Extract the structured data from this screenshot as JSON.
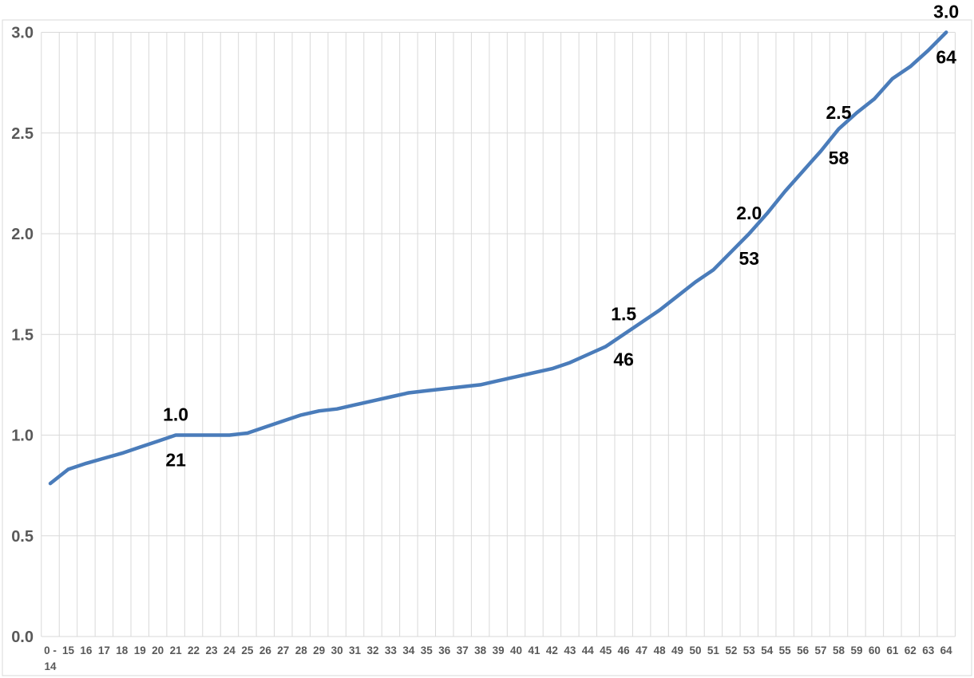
{
  "chart_data": {
    "type": "line",
    "title": "",
    "xlabel": "",
    "ylabel": "",
    "categories": [
      "0 - 14",
      "15",
      "16",
      "17",
      "18",
      "19",
      "20",
      "21",
      "22",
      "23",
      "24",
      "25",
      "26",
      "27",
      "28",
      "29",
      "30",
      "31",
      "32",
      "33",
      "34",
      "35",
      "36",
      "37",
      "38",
      "39",
      "40",
      "41",
      "42",
      "43",
      "44",
      "45",
      "46",
      "47",
      "48",
      "49",
      "50",
      "51",
      "52",
      "53",
      "54",
      "55",
      "56",
      "57",
      "58",
      "59",
      "60",
      "61",
      "62",
      "63",
      "64"
    ],
    "values": [
      0.76,
      0.83,
      0.86,
      0.885,
      0.91,
      0.94,
      0.97,
      1.0,
      1.0,
      1.0,
      1.0,
      1.01,
      1.04,
      1.07,
      1.1,
      1.12,
      1.13,
      1.15,
      1.17,
      1.19,
      1.21,
      1.22,
      1.23,
      1.24,
      1.25,
      1.27,
      1.29,
      1.31,
      1.33,
      1.36,
      1.4,
      1.44,
      1.5,
      1.56,
      1.62,
      1.69,
      1.76,
      1.82,
      1.91,
      2.0,
      2.1,
      2.21,
      2.31,
      2.41,
      2.52,
      2.6,
      2.67,
      2.77,
      2.83,
      2.91,
      3.0
    ],
    "ylim": [
      0.0,
      3.0
    ],
    "ytick_labels": [
      "0.0",
      "0.5",
      "1.0",
      "1.5",
      "2.0",
      "2.5",
      "3.0"
    ],
    "grid": true,
    "legend": "none",
    "annotations": [
      {
        "value_label": "1.0",
        "category_label": "21",
        "category_index": 7
      },
      {
        "value_label": "1.5",
        "category_label": "46",
        "category_index": 32
      },
      {
        "value_label": "2.0",
        "category_label": "53",
        "category_index": 39
      },
      {
        "value_label": "2.5",
        "category_label": "58",
        "category_index": 44
      },
      {
        "value_label": "3.0",
        "category_label": "64",
        "category_index": 50
      }
    ],
    "colors": {
      "series_line": "#4a7cba",
      "gridline": "#d9d9d9",
      "plot_border": "#d9d9d9",
      "axis_tick_text": "#595959",
      "annotation_text": "#000000",
      "background": "#ffffff"
    }
  }
}
